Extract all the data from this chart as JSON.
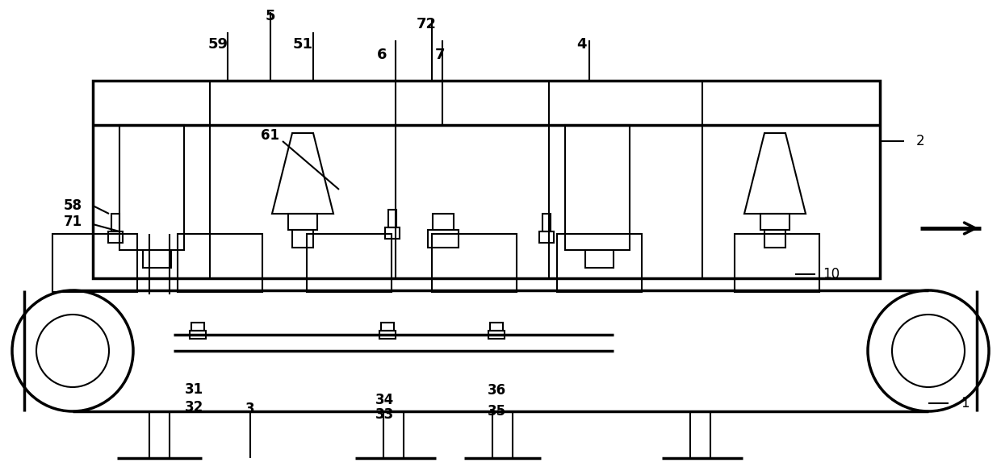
{
  "bg_color": "#ffffff",
  "lw": 1.5,
  "lw_thick": 2.5,
  "lw_med": 2.0,
  "fig_width": 12.4,
  "fig_height": 5.84
}
